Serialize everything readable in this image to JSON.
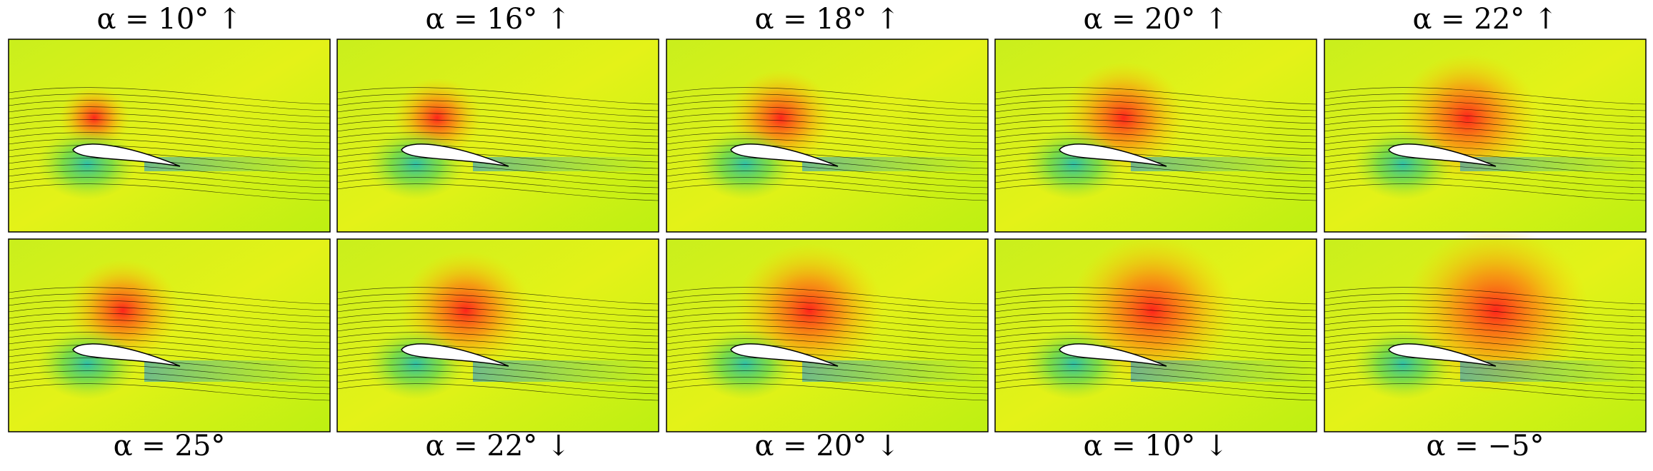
{
  "top_row": [
    "α = 10° ↑",
    "α = 16° ↑",
    "α = 18° ↑",
    "α = 20° ↑",
    "α = 22° ↑"
  ],
  "bottom_row": [
    "α = 25°",
    "α = 22° ↓",
    "α = 20° ↓",
    "α = 10° ↓",
    "α = −5°"
  ]
}
